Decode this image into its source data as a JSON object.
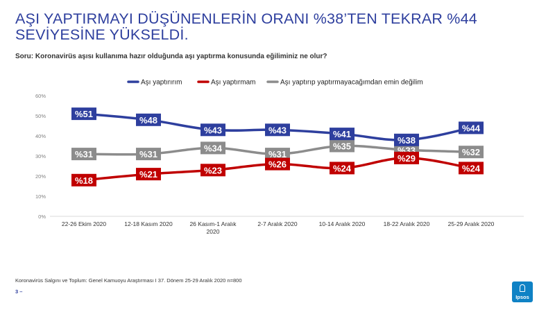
{
  "title": "AŞI YAPTIRMAYI DÜŞÜNENLERİN ORANI %38’TEN TEKRAR %44 SEVİYESİNE YÜKSELDİ.",
  "question": "Soru: Koronavirüs aşısı kullanıma hazır olduğunda aşı yaptırma konusunda eğiliminiz ne olur?",
  "footer": "Koronavirüs Salgını ve Toplum: Genel Kamuoyu Araştırması I 37. Dönem 25-29 Aralık 2020 n=800",
  "page_number": "3 –",
  "logo_text": "Ipsos",
  "colors": {
    "blue": "#2e3f9e",
    "red": "#c00000",
    "gray": "#8c8c8c",
    "axis_text": "#808080"
  },
  "chart_data": {
    "type": "line",
    "categories": [
      "22-26 Ekim 2020",
      "12-18 Kasım 2020",
      "26 Kasım-1 Aralık 2020",
      "2-7 Aralık 2020",
      "10-14 Aralık 2020",
      "18-22 Aralık 2020",
      "25-29 Aralık 2020"
    ],
    "ylim": [
      0,
      60
    ],
    "yticks": [
      "0%",
      "10%",
      "20%",
      "30%",
      "40%",
      "50%",
      "60%"
    ],
    "grid": false,
    "legend_position": "top",
    "series": [
      {
        "name": "Aşı yaptırırım",
        "color": "#2e3f9e",
        "values": [
          51,
          48,
          43,
          43,
          41,
          38,
          44
        ],
        "labels": [
          "%51",
          "%48",
          "%43",
          "%43",
          "%41",
          "%38",
          "%44"
        ]
      },
      {
        "name": "Aşı yaptırmam",
        "color": "#c00000",
        "values": [
          18,
          21,
          23,
          26,
          24,
          29,
          24
        ],
        "labels": [
          "%18",
          "%21",
          "%23",
          "%26",
          "%24",
          "%29",
          "%24"
        ]
      },
      {
        "name": "Aşı yaptırıp yaptırmayacağımdan emin değilim",
        "color": "#8c8c8c",
        "values": [
          31,
          31,
          34,
          31,
          35,
          33,
          32
        ],
        "labels": [
          "%31",
          "%31",
          "%34",
          "%31",
          "%35",
          "%33",
          "%32"
        ]
      }
    ]
  }
}
